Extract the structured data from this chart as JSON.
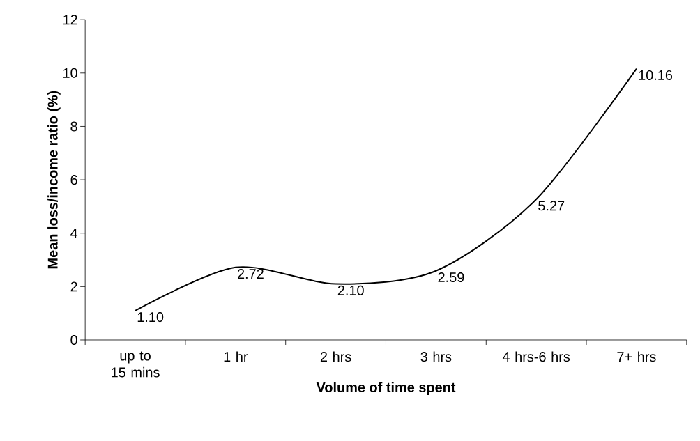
{
  "chart_data": {
    "type": "line",
    "xlabel": "Volume of time spent",
    "ylabel": "Mean loss/income ratio (%)",
    "categories": [
      "up to 15 mins",
      "1 hr",
      "2 hrs",
      "3 hrs",
      "4 hrs-6 hrs",
      "7+ hrs"
    ],
    "values": [
      1.1,
      2.72,
      2.1,
      2.59,
      5.27,
      10.16
    ],
    "value_labels": [
      "1.10",
      "2.72",
      "2.10",
      "2.59",
      "5.27",
      "10.16"
    ],
    "color": "#000000",
    "ylim": [
      0,
      12
    ],
    "yticks": [
      0,
      2,
      4,
      6,
      8,
      10,
      12
    ],
    "marker": "none",
    "line_style": "solid"
  }
}
